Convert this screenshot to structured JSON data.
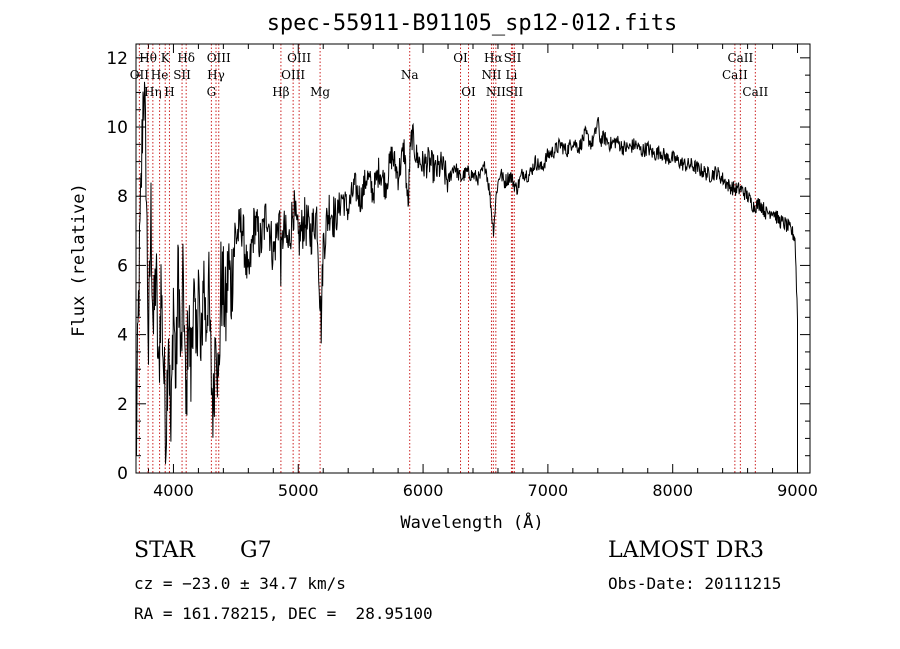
{
  "chart_data": {
    "type": "line",
    "title": "spec-55911-B91105_sp12-012.fits",
    "xlabel": "Wavelength (Å)",
    "ylabel": "Flux (relative)",
    "xlim": [
      3700,
      9100
    ],
    "ylim": [
      0,
      12.4
    ],
    "xticks": [
      4000,
      5000,
      6000,
      7000,
      8000,
      9000
    ],
    "yticks": [
      0,
      2,
      4,
      6,
      8,
      10,
      12
    ],
    "series": [
      {
        "name": "spectrum",
        "x": [
          3700,
          3720,
          3740,
          3760,
          3780,
          3800,
          3820,
          3840,
          3860,
          3880,
          3900,
          3920,
          3940,
          3960,
          3980,
          4000,
          4020,
          4040,
          4060,
          4080,
          4100,
          4120,
          4140,
          4160,
          4180,
          4200,
          4220,
          4240,
          4260,
          4280,
          4300,
          4320,
          4340,
          4360,
          4380,
          4400,
          4420,
          4440,
          4460,
          4480,
          4500,
          4550,
          4600,
          4650,
          4700,
          4750,
          4800,
          4850,
          4861,
          4880,
          4920,
          4960,
          5000,
          5050,
          5100,
          5150,
          5170,
          5184,
          5200,
          5250,
          5300,
          5350,
          5400,
          5450,
          5500,
          5550,
          5600,
          5650,
          5700,
          5750,
          5800,
          5850,
          5880,
          5893,
          5910,
          5950,
          6000,
          6050,
          6100,
          6150,
          6200,
          6250,
          6300,
          6350,
          6400,
          6450,
          6500,
          6530,
          6563,
          6590,
          6620,
          6650,
          6700,
          6750,
          6800,
          6850,
          6900,
          6950,
          7000,
          7050,
          7100,
          7150,
          7200,
          7250,
          7300,
          7350,
          7380,
          7400,
          7420,
          7450,
          7500,
          7550,
          7600,
          7650,
          7700,
          7750,
          7800,
          7850,
          7900,
          7950,
          8000,
          8050,
          8100,
          8150,
          8200,
          8250,
          8300,
          8350,
          8400,
          8450,
          8500,
          8550,
          8600,
          8650,
          8700,
          8750,
          8800,
          8850,
          8900,
          8950,
          8980,
          9000
        ],
        "values": [
          0.1,
          4.8,
          8.0,
          11.5,
          9.0,
          3.5,
          7.5,
          4.0,
          6.0,
          2.5,
          5.5,
          3.2,
          1.2,
          4.5,
          0.8,
          5.2,
          2.5,
          6.2,
          3.0,
          5.8,
          1.5,
          4.8,
          2.8,
          5.5,
          3.2,
          5.8,
          2.8,
          6.0,
          4.2,
          5.6,
          3.0,
          1.8,
          4.8,
          2.2,
          5.5,
          5.2,
          4.5,
          6.2,
          5.2,
          6.5,
          6.8,
          7.2,
          5.5,
          7.3,
          6.6,
          7.6,
          6.3,
          7.5,
          5.9,
          7.1,
          6.5,
          7.7,
          6.7,
          7.3,
          6.9,
          7.5,
          5.5,
          4.3,
          6.6,
          7.7,
          7.3,
          8.0,
          7.6,
          8.3,
          7.9,
          8.6,
          8.1,
          8.8,
          8.3,
          9.2,
          8.6,
          9.4,
          7.6,
          9.0,
          9.8,
          9.1,
          8.9,
          9.0,
          8.7,
          8.9,
          8.4,
          8.9,
          8.5,
          8.7,
          8.6,
          8.5,
          8.9,
          8.2,
          7.0,
          8.2,
          8.7,
          8.4,
          8.6,
          8.2,
          8.7,
          8.6,
          9.0,
          8.8,
          9.2,
          9.3,
          9.5,
          9.3,
          9.6,
          9.4,
          9.8,
          9.5,
          9.8,
          10.2,
          9.6,
          9.7,
          9.5,
          9.6,
          9.4,
          9.4,
          9.5,
          9.3,
          9.4,
          9.2,
          9.3,
          9.1,
          9.1,
          9.0,
          8.9,
          8.9,
          8.8,
          8.7,
          8.6,
          8.7,
          8.5,
          8.3,
          8.2,
          8.2,
          8.0,
          7.7,
          7.8,
          7.5,
          7.6,
          7.3,
          7.2,
          7.0,
          6.8,
          4.5
        ]
      }
    ],
    "lines": [
      {
        "label": "OII",
        "x": 3727,
        "row": 1
      },
      {
        "label": "Hθ",
        "x": 3797,
        "row": 0
      },
      {
        "label": "Hη",
        "x": 3835,
        "row": 2
      },
      {
        "label": "He",
        "x": 3889,
        "row": 1
      },
      {
        "label": "K",
        "x": 3934,
        "row": 0
      },
      {
        "label": "H",
        "x": 3968,
        "row": 2
      },
      {
        "label": "SII",
        "x": 4069,
        "row": 1
      },
      {
        "label": "Hδ",
        "x": 4102,
        "row": 0
      },
      {
        "label": "G",
        "x": 4304,
        "row": 2
      },
      {
        "label": "Hγ",
        "x": 4341,
        "row": 1
      },
      {
        "label": "OIII",
        "x": 4363,
        "row": 0
      },
      {
        "label": "Hβ",
        "x": 4861,
        "row": 2
      },
      {
        "label": "OIII",
        "x": 4959,
        "row": 1
      },
      {
        "label": "OIII",
        "x": 5007,
        "row": 0
      },
      {
        "label": "Mg",
        "x": 5175,
        "row": 2
      },
      {
        "label": "Na",
        "x": 5893,
        "row": 1
      },
      {
        "label": "OI",
        "x": 6300,
        "row": 0
      },
      {
        "label": "OI",
        "x": 6364,
        "row": 2
      },
      {
        "label": "NII",
        "x": 6548,
        "row": 1
      },
      {
        "label": "Hα",
        "x": 6563,
        "row": 0
      },
      {
        "label": "NII",
        "x": 6583,
        "row": 2
      },
      {
        "label": "Li",
        "x": 6708,
        "row": 1
      },
      {
        "label": "SII",
        "x": 6717,
        "row": 0
      },
      {
        "label": "SII",
        "x": 6731,
        "row": 2
      },
      {
        "label": "CaII",
        "x": 8498,
        "row": 1
      },
      {
        "label": "CaII",
        "x": 8542,
        "row": 0
      },
      {
        "label": "CaII",
        "x": 8662,
        "row": 2
      }
    ]
  },
  "info": {
    "class": "STAR",
    "subclass": "G7",
    "survey": "LAMOST DR3",
    "redshift": "cz = −23.0 ± 34.7 km/s",
    "obs_date": "Obs-Date: 20111215",
    "coords": "RA = 161.78215, DEC =  28.95100"
  },
  "colors": {
    "line_marker": "#cc2222",
    "spectrum": "#000000"
  }
}
